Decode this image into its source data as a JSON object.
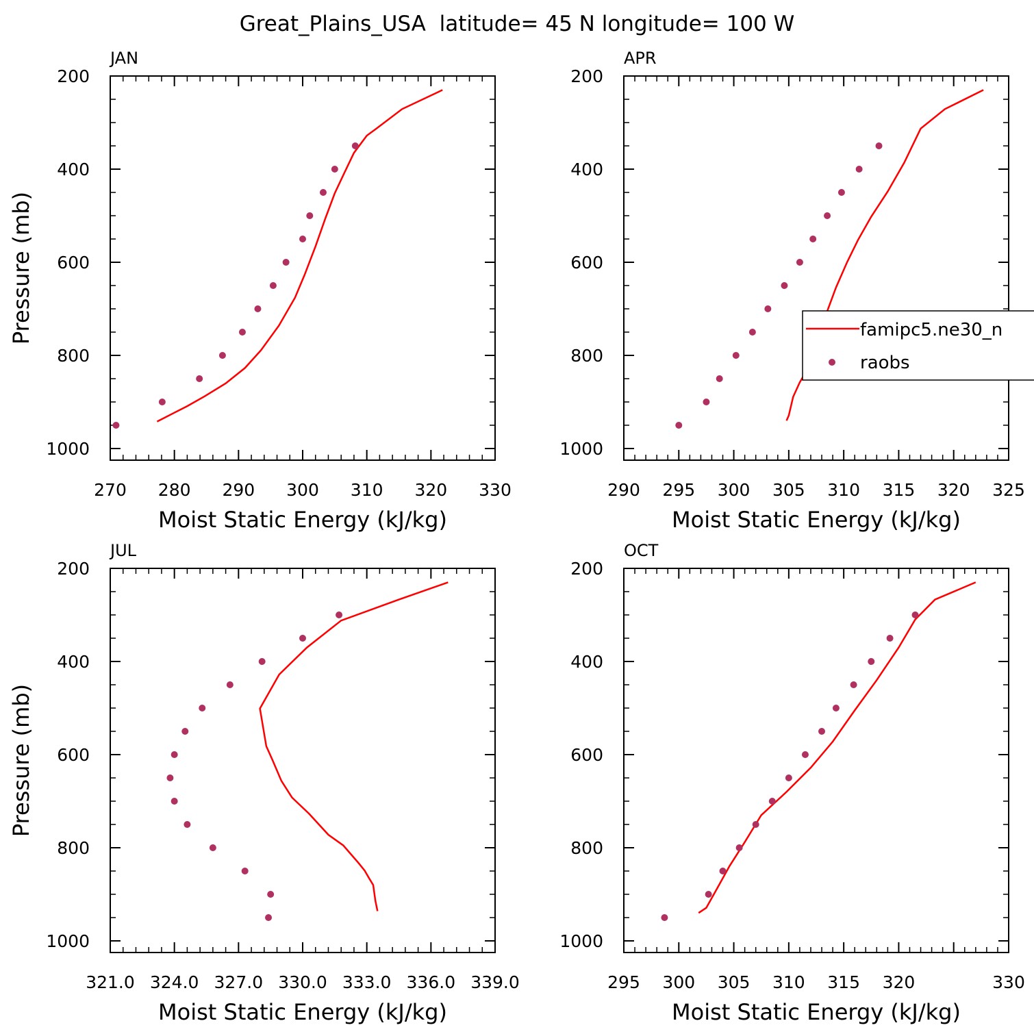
{
  "title": "Great_Plains_USA  latitude= 45 N longitude= 100 W",
  "colors": {
    "model": "#ff0000",
    "obs": "#b03060",
    "axis": "#000000"
  },
  "legend": {
    "items": [
      {
        "label": "famipc5.ne30_n",
        "kind": "line"
      },
      {
        "label": "raobs",
        "kind": "marker"
      }
    ]
  },
  "chart_data": [
    {
      "type": "line",
      "panel": "JAN",
      "xlabel": "Moist Static Energy (kJ/kg)",
      "ylabel": "Pressure (mb)",
      "xlim": [
        270,
        330
      ],
      "ylim": [
        1000,
        200
      ],
      "xticks": [
        "270",
        "280",
        "290",
        "300",
        "310",
        "320",
        "330"
      ],
      "yticks": [
        "200",
        "400",
        "600",
        "800",
        "1000"
      ],
      "series": [
        {
          "name": "famipc5.ne30_n",
          "style": "line",
          "points": [
            [
              277.3,
              942
            ],
            [
              282.0,
              909
            ],
            [
              284.7,
              888
            ],
            [
              288.0,
              860
            ],
            [
              291.0,
              827
            ],
            [
              293.5,
              789
            ],
            [
              296.3,
              736
            ],
            [
              298.8,
              676
            ],
            [
              300.3,
              627
            ],
            [
              302.0,
              566
            ],
            [
              303.5,
              507
            ],
            [
              305.0,
              452
            ],
            [
              306.5,
              408
            ],
            [
              308.0,
              365
            ],
            [
              310.0,
              328
            ],
            [
              311.5,
              313
            ],
            [
              315.5,
              271
            ],
            [
              321.8,
              230
            ]
          ]
        },
        {
          "name": "raobs",
          "style": "marker",
          "points": [
            [
              270.9,
              950
            ],
            [
              278.1,
              900
            ],
            [
              283.9,
              850
            ],
            [
              287.5,
              800
            ],
            [
              290.6,
              750
            ],
            [
              293.0,
              700
            ],
            [
              295.4,
              650
            ],
            [
              297.4,
              600
            ],
            [
              300.0,
              550
            ],
            [
              301.1,
              500
            ],
            [
              303.2,
              450
            ],
            [
              305.0,
              400
            ],
            [
              308.2,
              350
            ]
          ]
        }
      ]
    },
    {
      "type": "line",
      "panel": "APR",
      "xlabel": "Moist Static Energy (kJ/kg)",
      "ylabel": "",
      "xlim": [
        290,
        325
      ],
      "ylim": [
        1000,
        200
      ],
      "xticks": [
        "290",
        "295",
        "300",
        "305",
        "310",
        "315",
        "320",
        "325"
      ],
      "yticks": [
        "200",
        "400",
        "600",
        "800",
        "1000"
      ],
      "series": [
        {
          "name": "famipc5.ne30_n",
          "style": "line",
          "points": [
            [
              304.8,
              940
            ],
            [
              305.0,
              929
            ],
            [
              305.4,
              889
            ],
            [
              306.0,
              858
            ],
            [
              306.5,
              838
            ],
            [
              307.0,
              808
            ],
            [
              307.7,
              761
            ],
            [
              308.3,
              718
            ],
            [
              309.3,
              654
            ],
            [
              310.3,
              600
            ],
            [
              311.3,
              552
            ],
            [
              312.5,
              502
            ],
            [
              314.0,
              448
            ],
            [
              315.5,
              386
            ],
            [
              317.0,
              313
            ],
            [
              319.2,
              271
            ],
            [
              322.7,
              230
            ]
          ]
        },
        {
          "name": "raobs",
          "style": "marker",
          "points": [
            [
              295.0,
              950
            ],
            [
              297.5,
              900
            ],
            [
              298.7,
              850
            ],
            [
              300.2,
              800
            ],
            [
              301.7,
              750
            ],
            [
              303.1,
              700
            ],
            [
              304.6,
              650
            ],
            [
              306.0,
              600
            ],
            [
              307.2,
              550
            ],
            [
              308.5,
              500
            ],
            [
              309.8,
              450
            ],
            [
              311.4,
              400
            ],
            [
              313.2,
              350
            ]
          ]
        }
      ]
    },
    {
      "type": "line",
      "panel": "JUL",
      "xlabel": "Moist Static Energy (kJ/kg)",
      "ylabel": "Pressure (mb)",
      "xlim": [
        321.0,
        339.0
      ],
      "ylim": [
        1000,
        200
      ],
      "xticks": [
        "321.0",
        "324.0",
        "327.0",
        "330.0",
        "333.0",
        "336.0",
        "339.0"
      ],
      "yticks": [
        "200",
        "400",
        "600",
        "800",
        "1000"
      ],
      "series": [
        {
          "name": "famipc5.ne30_n",
          "style": "line",
          "points": [
            [
              333.5,
              936
            ],
            [
              333.4,
              914
            ],
            [
              333.3,
              880
            ],
            [
              333.1,
              865
            ],
            [
              332.9,
              849
            ],
            [
              332.6,
              832
            ],
            [
              331.9,
              795
            ],
            [
              331.2,
              772
            ],
            [
              330.3,
              727
            ],
            [
              329.5,
              692
            ],
            [
              329.0,
              656
            ],
            [
              328.6,
              613
            ],
            [
              328.3,
              582
            ],
            [
              328.0,
              501
            ],
            [
              328.9,
              428
            ],
            [
              330.2,
              370
            ],
            [
              331.8,
              312
            ],
            [
              334.5,
              267
            ],
            [
              336.8,
              230
            ]
          ]
        },
        {
          "name": "raobs",
          "style": "marker",
          "points": [
            [
              328.4,
              950
            ],
            [
              328.5,
              900
            ],
            [
              327.3,
              850
            ],
            [
              325.8,
              800
            ],
            [
              324.6,
              750
            ],
            [
              324.0,
              700
            ],
            [
              323.8,
              650
            ],
            [
              324.0,
              600
            ],
            [
              324.5,
              550
            ],
            [
              325.3,
              500
            ],
            [
              326.6,
              450
            ],
            [
              328.1,
              400
            ],
            [
              330.0,
              350
            ],
            [
              331.7,
              300
            ]
          ]
        }
      ]
    },
    {
      "type": "line",
      "panel": "OCT",
      "xlabel": "Moist Static Energy (kJ/kg)",
      "ylabel": "",
      "xlim": [
        295,
        330
      ],
      "ylim": [
        1000,
        200
      ],
      "xticks": [
        "295",
        "300",
        "305",
        "310",
        "315",
        "320",
        "330"
      ],
      "xtick_values": [
        295,
        300,
        305,
        310,
        315,
        320,
        330
      ],
      "yticks": [
        "200",
        "400",
        "600",
        "800",
        "1000"
      ],
      "series": [
        {
          "name": "famipc5.ne30_n",
          "style": "line",
          "points": [
            [
              301.8,
              940
            ],
            [
              302.5,
              929
            ],
            [
              303.4,
              891
            ],
            [
              304.6,
              840
            ],
            [
              306.0,
              788
            ],
            [
              307.5,
              730
            ],
            [
              309.8,
              680
            ],
            [
              312.0,
              628
            ],
            [
              314.0,
              572
            ],
            [
              316.0,
              505
            ],
            [
              318.0,
              440
            ],
            [
              320.0,
              370
            ],
            [
              321.5,
              310
            ],
            [
              323.3,
              267
            ],
            [
              327.0,
              230
            ]
          ]
        },
        {
          "name": "raobs",
          "style": "marker",
          "points": [
            [
              298.7,
              950
            ],
            [
              302.7,
              900
            ],
            [
              304.0,
              850
            ],
            [
              305.5,
              800
            ],
            [
              307.0,
              750
            ],
            [
              308.5,
              700
            ],
            [
              310.0,
              650
            ],
            [
              311.5,
              600
            ],
            [
              313.0,
              550
            ],
            [
              314.3,
              500
            ],
            [
              315.9,
              450
            ],
            [
              317.5,
              400
            ],
            [
              319.2,
              350
            ],
            [
              321.5,
              300
            ]
          ]
        }
      ]
    }
  ]
}
